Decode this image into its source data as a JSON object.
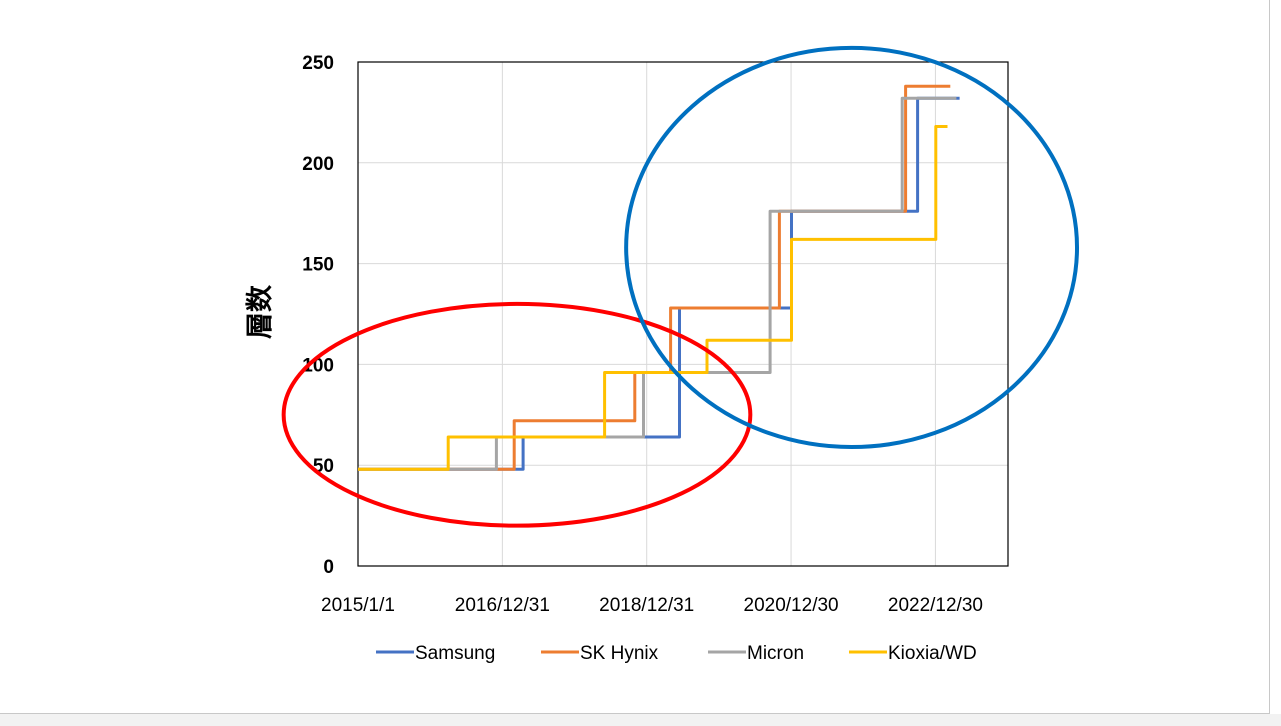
{
  "chart_data": {
    "type": "line",
    "step": true,
    "title": "",
    "xlabel": "",
    "ylabel": "層数",
    "ylim": [
      0,
      250
    ],
    "yticks": [
      "0",
      "50",
      "100",
      "150",
      "200",
      "250"
    ],
    "xlim": [
      "2015-01-01",
      "2024-01-01"
    ],
    "xticks": [
      {
        "date": "2015-01-01",
        "label": "2015/1/1"
      },
      {
        "date": "2016-12-31",
        "label": "2016/12/31"
      },
      {
        "date": "2018-12-31",
        "label": "2018/12/31"
      },
      {
        "date": "2020-12-30",
        "label": "2020/12/30"
      },
      {
        "date": "2022-12-30",
        "label": "2022/12/30"
      }
    ],
    "grid": true,
    "legend_position": "bottom",
    "series": [
      {
        "name": "Samsung",
        "color": "#4472C4",
        "points": [
          [
            "2015-01-01",
            48
          ],
          [
            "2017-04-15",
            48
          ],
          [
            "2017-04-15",
            64
          ],
          [
            "2019-06-15",
            64
          ],
          [
            "2019-06-15",
            128
          ],
          [
            "2021-01-01",
            128
          ],
          [
            "2021-01-01",
            176
          ],
          [
            "2022-10-01",
            176
          ],
          [
            "2022-10-01",
            232
          ],
          [
            "2023-05-01",
            232
          ]
        ]
      },
      {
        "name": "SK Hynix",
        "color": "#ED7D31",
        "points": [
          [
            "2015-01-01",
            48
          ],
          [
            "2017-03-01",
            48
          ],
          [
            "2017-03-01",
            72
          ],
          [
            "2018-11-01",
            72
          ],
          [
            "2018-11-01",
            96
          ],
          [
            "2019-05-01",
            96
          ],
          [
            "2019-05-01",
            128
          ],
          [
            "2020-11-01",
            128
          ],
          [
            "2020-11-01",
            176
          ],
          [
            "2022-08-01",
            176
          ],
          [
            "2022-08-01",
            238
          ],
          [
            "2023-03-15",
            238
          ]
        ]
      },
      {
        "name": "Micron",
        "color": "#A5A5A5",
        "points": [
          [
            "2015-01-01",
            48
          ],
          [
            "2016-12-01",
            48
          ],
          [
            "2016-12-01",
            64
          ],
          [
            "2018-12-15",
            64
          ],
          [
            "2018-12-15",
            96
          ],
          [
            "2020-09-15",
            96
          ],
          [
            "2020-09-15",
            176
          ],
          [
            "2022-07-15",
            176
          ],
          [
            "2022-07-15",
            232
          ],
          [
            "2023-04-15",
            232
          ]
        ]
      },
      {
        "name": "Kioxia/WD",
        "color": "#FFC000",
        "points": [
          [
            "2015-01-01",
            48
          ],
          [
            "2016-04-01",
            48
          ],
          [
            "2016-04-01",
            64
          ],
          [
            "2018-06-01",
            64
          ],
          [
            "2018-06-01",
            96
          ],
          [
            "2019-11-01",
            96
          ],
          [
            "2019-11-01",
            112
          ],
          [
            "2021-01-01",
            112
          ],
          [
            "2021-01-01",
            162
          ],
          [
            "2023-01-01",
            162
          ],
          [
            "2023-01-01",
            218
          ],
          [
            "2023-03-01",
            218
          ]
        ]
      }
    ],
    "annotations": [
      {
        "type": "ellipse",
        "color": "#FF0000",
        "center": [
          "2017-03-15",
          75
        ],
        "radius_x_days": 1180,
        "radius_y": 55
      },
      {
        "type": "ellipse",
        "color": "#0070C0",
        "center": [
          "2021-11-01",
          158
        ],
        "radius_x_days": 1140,
        "radius_y": 99
      }
    ]
  }
}
